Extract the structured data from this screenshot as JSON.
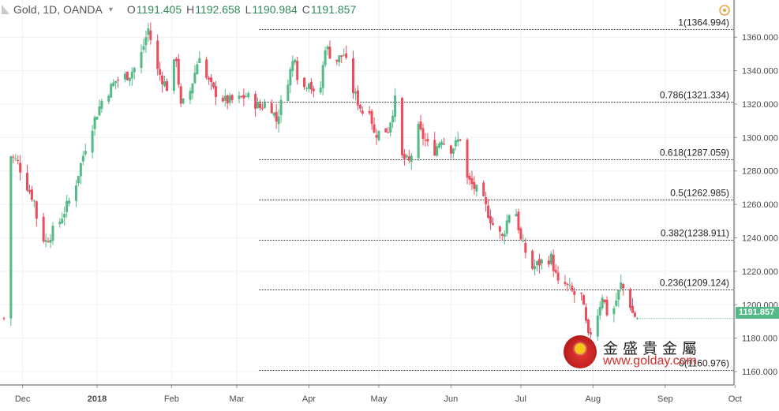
{
  "header": {
    "symbol": "Gold, 1D, OANDA",
    "ohlc": [
      {
        "label": "O",
        "value": "1191.405"
      },
      {
        "label": "H",
        "value": "1192.658"
      },
      {
        "label": "L",
        "value": "1190.984"
      },
      {
        "label": "C",
        "value": "1191.857"
      }
    ]
  },
  "price_tag": "1191.857",
  "watermark": {
    "cn": "金盛貴金屬",
    "url": "www.golday.com"
  },
  "colors": {
    "up": "#53b987",
    "down": "#eb4d5c",
    "grid": "#eef0f3",
    "fib": "#333333",
    "axis_text": "#4a4a4a"
  },
  "chart_data": {
    "type": "candlestick",
    "ylim": [
      1152,
      1370
    ],
    "grid": true,
    "y_ticks": [
      "1160.000",
      "1180.000",
      "1200.000",
      "1220.000",
      "1240.000",
      "1260.000",
      "1280.000",
      "1300.000",
      "1320.000",
      "1340.000",
      "1360.000"
    ],
    "x_ticks": [
      "Dec",
      "2018",
      "Feb",
      "Mar",
      "Apr",
      "May",
      "Jun",
      "Jul",
      "Aug",
      "Sep",
      "Oct"
    ],
    "x_tick_days": [
      8,
      40,
      72,
      100,
      131,
      161,
      192,
      222,
      253,
      284,
      314
    ],
    "fib_levels": [
      {
        "label": "1(1364.994)",
        "value": 1364.994
      },
      {
        "label": "0.786(1321.334)",
        "value": 1321.334
      },
      {
        "label": "0.618(1287.059)",
        "value": 1287.059
      },
      {
        "label": "0.5(1262.985)",
        "value": 1262.985
      },
      {
        "label": "0.382(1238.911)",
        "value": 1238.911
      },
      {
        "label": "0.236(1209.124)",
        "value": 1209.124
      },
      {
        "label": "0(1160.976)",
        "value": 1160.976
      }
    ],
    "last_price": 1191.857,
    "anchors": [
      [
        1,
        1292
      ],
      [
        6,
        1285
      ],
      [
        9,
        1274
      ],
      [
        13,
        1262
      ],
      [
        15,
        1243
      ],
      [
        18,
        1238
      ],
      [
        24,
        1250
      ],
      [
        30,
        1268
      ],
      [
        36,
        1300
      ],
      [
        42,
        1322
      ],
      [
        48,
        1334
      ],
      [
        54,
        1338
      ],
      [
        58,
        1345
      ],
      [
        62,
        1365
      ],
      [
        66,
        1340
      ],
      [
        70,
        1330
      ],
      [
        74,
        1348
      ],
      [
        76,
        1318
      ],
      [
        80,
        1328
      ],
      [
        84,
        1350
      ],
      [
        86,
        1338
      ],
      [
        90,
        1328
      ],
      [
        95,
        1322
      ],
      [
        100,
        1322
      ],
      [
        104,
        1325
      ],
      [
        110,
        1318
      ],
      [
        114,
        1322
      ],
      [
        117,
        1310
      ],
      [
        121,
        1330
      ],
      [
        125,
        1350
      ],
      [
        127,
        1325
      ],
      [
        131,
        1335
      ],
      [
        133,
        1325
      ],
      [
        136,
        1330
      ],
      [
        138,
        1355
      ],
      [
        142,
        1345
      ],
      [
        146,
        1350
      ],
      [
        150,
        1328
      ],
      [
        155,
        1312
      ],
      [
        157,
        1318
      ],
      [
        159,
        1302
      ],
      [
        165,
        1305
      ],
      [
        168,
        1322
      ],
      [
        171,
        1288
      ],
      [
        174,
        1285
      ],
      [
        178,
        1305
      ],
      [
        181,
        1298
      ],
      [
        184,
        1290
      ],
      [
        188,
        1300
      ],
      [
        191,
        1292
      ],
      [
        194,
        1296
      ],
      [
        197,
        1302
      ],
      [
        199,
        1275
      ],
      [
        205,
        1265
      ],
      [
        210,
        1248
      ],
      [
        214,
        1240
      ],
      [
        217,
        1255
      ],
      [
        220,
        1255
      ],
      [
        222,
        1238
      ],
      [
        227,
        1222
      ],
      [
        230,
        1225
      ],
      [
        235,
        1228
      ],
      [
        238,
        1212
      ],
      [
        241,
        1212
      ],
      [
        245,
        1206
      ],
      [
        248,
        1205
      ],
      [
        251,
        1180
      ],
      [
        255,
        1195
      ],
      [
        257,
        1206
      ],
      [
        260,
        1190
      ],
      [
        262,
        1198
      ],
      [
        265,
        1212
      ],
      [
        268,
        1205
      ],
      [
        270,
        1195
      ],
      [
        272,
        1191.857
      ]
    ]
  }
}
